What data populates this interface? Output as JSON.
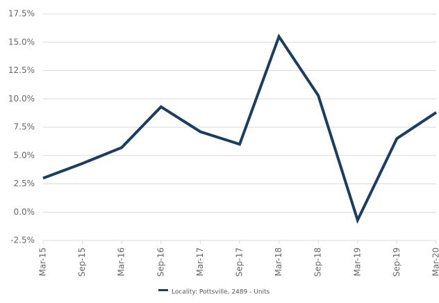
{
  "chart_data": {
    "type": "line",
    "title": "",
    "xlabel": "",
    "ylabel": "",
    "categories": [
      "Mar-15",
      "Sep-15",
      "Mar-16",
      "Sep-16",
      "Mar-17",
      "Sep-17",
      "Mar-18",
      "Sep-18",
      "Mar-19",
      "Sep-19",
      "Mar-20"
    ],
    "series": [
      {
        "name": "Locality: Pottsville, 2489 - Units",
        "values": [
          3.0,
          4.3,
          5.7,
          9.3,
          7.1,
          6.0,
          15.5,
          10.3,
          -0.7,
          6.5,
          8.8
        ],
        "color": "#1b3d5f"
      }
    ],
    "ylim": [
      -2.5,
      17.5
    ],
    "yticks": [
      "17.5%",
      "15.0%",
      "12.5%",
      "10.0%",
      "7.5%",
      "5.0%",
      "2.5%",
      "0.0%",
      "-2.5%"
    ],
    "ytick_values": [
      17.5,
      15.0,
      12.5,
      10.0,
      7.5,
      5.0,
      2.5,
      0.0,
      -2.5
    ],
    "grid": "horizontal",
    "legend_position": "bottom-center",
    "colors": {
      "grid": "#d9d9d9",
      "tick_text": "#666666",
      "line": "#1b3d5f"
    }
  }
}
